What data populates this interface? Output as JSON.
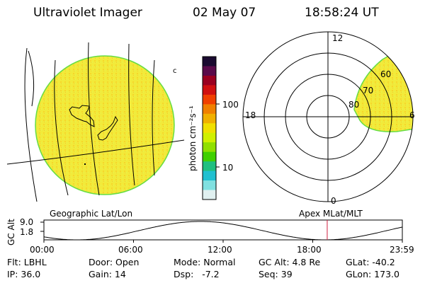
{
  "header": {
    "instrument": "Ultraviolet Imager",
    "date": "02 May 07",
    "time": "18:58:24 UT"
  },
  "colorbar": {
    "unit_label": "photon cm⁻²s⁻¹",
    "ticks": [
      "100",
      "10"
    ],
    "colors_top_to_bottom": [
      "#1a0a30",
      "#5a0a4a",
      "#9a0020",
      "#d01010",
      "#f04000",
      "#f08000",
      "#f0b000",
      "#f0e000",
      "#d0f000",
      "#90e000",
      "#40d000",
      "#20c080",
      "#20c0d0",
      "#80e0e0",
      "#e0f0f0"
    ]
  },
  "polar_plot": {
    "mlt_labels": [
      "12",
      "18",
      "6",
      "0"
    ],
    "lat_labels": [
      "60",
      "70",
      "80"
    ]
  },
  "altitude_plot": {
    "left_title": "Geographic Lat/Lon",
    "right_title": "Apex MLat/MLT",
    "yaxis_label": "GC Alt",
    "ytick_top": "9.0",
    "ytick_bottom": "1.8",
    "xticks": [
      "00:00",
      "06:00",
      "12:00",
      "18:00",
      "23:59"
    ],
    "marker_time_hours": 18.97
  },
  "status": {
    "row1": {
      "flt": "Flt: LBHL",
      "door": "Door: Open",
      "mode": "Mode: Normal",
      "gcalt": "GC Alt: 4.8 Re",
      "glat": "GLat: -40.2"
    },
    "row2": {
      "ip": "IP: 36.0",
      "gain": "Gain: 14",
      "dsp": "Dsp:   -7.2",
      "seq": "Seq: 39",
      "glon": "GLon: 173.0"
    }
  }
}
